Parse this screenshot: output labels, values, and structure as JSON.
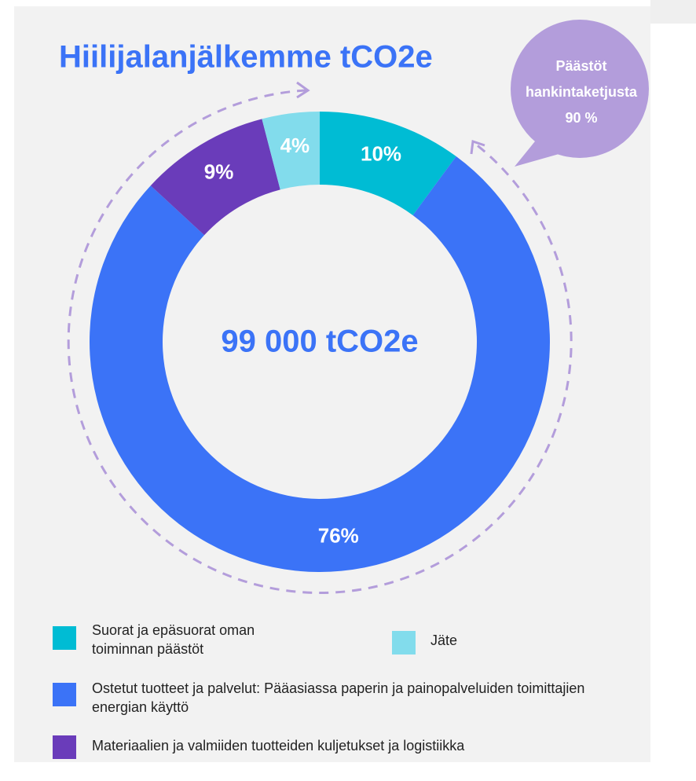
{
  "chart_data": {
    "type": "donut",
    "title": "Hiilijalanjälkemme tCO2e",
    "center_label": "99 000 tCO2e",
    "annotation": [
      "Päästöt",
      "hankintaketjusta",
      "90 %"
    ],
    "series": [
      {
        "name": "Suorat ja epäsuorat oman toiminnan päästöt",
        "color": "#00bcd4"
      },
      {
        "name": "Ostetut tuotteet ja palvelut: Pääasiassa paperin ja painopalveluiden toimittajien energian käyttö",
        "color": "#3b73f7"
      },
      {
        "name": "Materiaalien ja valmiiden tuotteiden kuljetukset ja logistiikka",
        "color": "#6a3cba"
      },
      {
        "name": "Jäte",
        "color": "#82dcec"
      }
    ],
    "values": [
      10,
      76,
      9,
      4
    ],
    "value_labels": [
      "10%",
      "76%",
      "9%",
      "4%"
    ]
  }
}
